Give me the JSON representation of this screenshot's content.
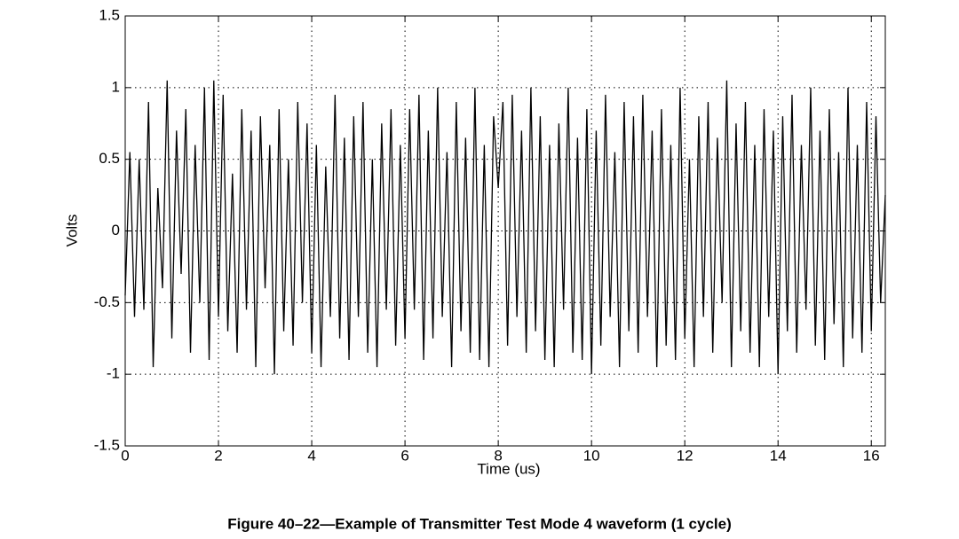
{
  "chart_data": {
    "type": "line",
    "caption": "Figure 40–22—Example of Transmitter Test Mode 4 waveform (1 cycle)",
    "x_label": "Time (us)",
    "y_label": "Volts",
    "xlim": [
      0,
      16.3
    ],
    "ylim": [
      -1.5,
      1.5
    ],
    "xticks": [
      0,
      2,
      4,
      6,
      8,
      10,
      12,
      14,
      16
    ],
    "yticks": [
      -1.5,
      -1,
      -0.5,
      0,
      0.5,
      1,
      1.5
    ],
    "grid": true,
    "color": "#000000",
    "x": [
      0,
      0.1,
      0.2,
      0.3,
      0.4,
      0.5,
      0.6,
      0.7,
      0.8,
      0.9,
      1,
      1.1,
      1.2,
      1.3,
      1.4,
      1.5,
      1.6,
      1.7,
      1.8,
      1.9,
      2,
      2.1,
      2.2,
      2.3,
      2.4,
      2.5,
      2.6,
      2.7,
      2.8,
      2.9,
      3,
      3.1,
      3.2,
      3.3,
      3.4,
      3.5,
      3.6,
      3.7,
      3.8,
      3.9,
      4,
      4.1,
      4.2,
      4.3,
      4.4,
      4.5,
      4.6,
      4.7,
      4.8,
      4.9,
      5,
      5.1,
      5.2,
      5.3,
      5.4,
      5.5,
      5.6,
      5.7,
      5.8,
      5.9,
      6,
      6.1,
      6.2,
      6.3,
      6.4,
      6.5,
      6.6,
      6.7,
      6.8,
      6.9,
      7,
      7.1,
      7.2,
      7.3,
      7.4,
      7.5,
      7.6,
      7.7,
      7.8,
      7.9,
      8,
      8.1,
      8.2,
      8.3,
      8.4,
      8.5,
      8.6,
      8.7,
      8.8,
      8.9,
      9,
      9.1,
      9.2,
      9.3,
      9.4,
      9.5,
      9.6,
      9.7,
      9.8,
      9.9,
      10,
      10.1,
      10.2,
      10.3,
      10.4,
      10.5,
      10.6,
      10.7,
      10.8,
      10.9,
      11,
      11.1,
      11.2,
      11.3,
      11.4,
      11.5,
      11.6,
      11.7,
      11.8,
      11.9,
      12,
      12.1,
      12.2,
      12.3,
      12.4,
      12.5,
      12.6,
      12.7,
      12.8,
      12.9,
      13,
      13.1,
      13.2,
      13.3,
      13.4,
      13.5,
      13.6,
      13.7,
      13.8,
      13.9,
      14,
      14.1,
      14.2,
      14.3,
      14.4,
      14.5,
      14.6,
      14.7,
      14.8,
      14.9,
      15,
      15.1,
      15.2,
      15.3,
      15.4,
      15.5,
      15.6,
      15.7,
      15.8,
      15.9,
      16,
      16.1,
      16.2,
      16.3
    ],
    "values": [
      -0.45,
      0.55,
      -0.6,
      0.5,
      -0.55,
      0.9,
      -0.95,
      0.3,
      -0.4,
      1.05,
      -0.75,
      0.7,
      -0.3,
      0.85,
      -0.85,
      0.6,
      -0.5,
      1.0,
      -0.9,
      1.05,
      -0.6,
      0.95,
      -0.7,
      0.4,
      -0.85,
      0.85,
      -0.55,
      0.7,
      -0.95,
      0.8,
      -0.4,
      0.6,
      -1.0,
      0.85,
      -0.7,
      0.5,
      -0.8,
      0.9,
      -0.5,
      0.75,
      -0.85,
      0.6,
      -0.95,
      0.45,
      -0.6,
      0.95,
      -0.75,
      0.65,
      -0.9,
      0.8,
      -0.6,
      0.9,
      -0.85,
      0.5,
      -0.95,
      0.75,
      -0.55,
      0.85,
      -0.8,
      0.6,
      -0.75,
      0.85,
      -0.55,
      0.95,
      -0.9,
      0.7,
      -0.75,
      1.0,
      -0.6,
      0.55,
      -0.95,
      0.9,
      -0.7,
      0.65,
      -0.85,
      1.0,
      -0.9,
      0.6,
      -0.95,
      0.8,
      0.3,
      0.9,
      -0.8,
      0.95,
      -0.6,
      0.7,
      -0.85,
      1.0,
      -0.7,
      0.8,
      -0.9,
      0.6,
      -0.95,
      0.75,
      -0.55,
      1.0,
      -0.85,
      0.65,
      -0.9,
      0.85,
      -1.0,
      0.7,
      -0.8,
      0.95,
      -0.6,
      0.55,
      -0.95,
      0.9,
      -0.7,
      0.8,
      -0.85,
      0.95,
      -0.6,
      0.7,
      -0.95,
      0.85,
      -0.8,
      0.6,
      -0.9,
      1.0,
      -0.75,
      0.5,
      -0.95,
      0.8,
      -0.6,
      0.9,
      -0.85,
      0.65,
      -0.5,
      1.05,
      -0.95,
      0.75,
      -0.7,
      0.9,
      -0.85,
      0.6,
      -0.95,
      0.85,
      -0.6,
      0.7,
      -1.0,
      0.8,
      -0.7,
      0.95,
      -0.85,
      0.6,
      -0.55,
      1.0,
      -0.8,
      0.7,
      -0.9,
      0.85,
      -0.65,
      0.55,
      -0.95,
      1.0,
      -0.75,
      0.6,
      -0.85,
      0.9,
      -0.7,
      0.8,
      -0.5,
      0.25
    ]
  }
}
